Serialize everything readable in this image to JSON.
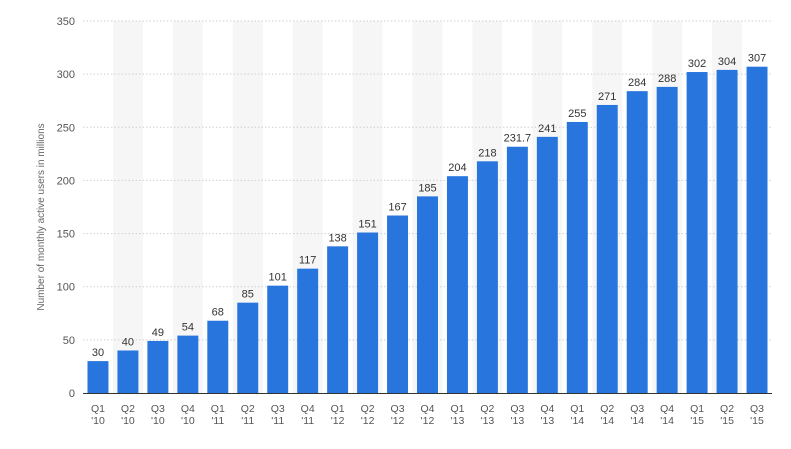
{
  "chart_data": {
    "type": "bar",
    "title": "",
    "xlabel": "",
    "ylabel": "Number of monthly active users in millions",
    "ylim": [
      0,
      350
    ],
    "yticks": [
      0,
      50,
      100,
      150,
      200,
      250,
      300,
      350
    ],
    "grid": true,
    "colors": {
      "bar": "#2876dd",
      "band": "#f6f6f6"
    },
    "categories": [
      [
        "Q1",
        "'10"
      ],
      [
        "Q2",
        "'10"
      ],
      [
        "Q3",
        "'10"
      ],
      [
        "Q4",
        "'10"
      ],
      [
        "Q1",
        "'11"
      ],
      [
        "Q2",
        "'11"
      ],
      [
        "Q3",
        "'11"
      ],
      [
        "Q4",
        "'11"
      ],
      [
        "Q1",
        "'12"
      ],
      [
        "Q2",
        "'12"
      ],
      [
        "Q3",
        "'12"
      ],
      [
        "Q4",
        "'12"
      ],
      [
        "Q1",
        "'13"
      ],
      [
        "Q2",
        "'13"
      ],
      [
        "Q3",
        "'13"
      ],
      [
        "Q4",
        "'13"
      ],
      [
        "Q1",
        "'14"
      ],
      [
        "Q2",
        "'14"
      ],
      [
        "Q3",
        "'14"
      ],
      [
        "Q4",
        "'14"
      ],
      [
        "Q1",
        "'15"
      ],
      [
        "Q2",
        "'15"
      ],
      [
        "Q3",
        "'15"
      ]
    ],
    "values": [
      30,
      40,
      49,
      54,
      68,
      85,
      101,
      117,
      138,
      151,
      167,
      185,
      204,
      218,
      231.7,
      241,
      255,
      271,
      284,
      288,
      302,
      304,
      307
    ],
    "labels": [
      "30",
      "40",
      "49",
      "54",
      "68",
      "85",
      "101",
      "117",
      "138",
      "151",
      "167",
      "185",
      "204",
      "218",
      "231.7",
      "241",
      "255",
      "271",
      "284",
      "288",
      "302",
      "304",
      "307"
    ]
  }
}
